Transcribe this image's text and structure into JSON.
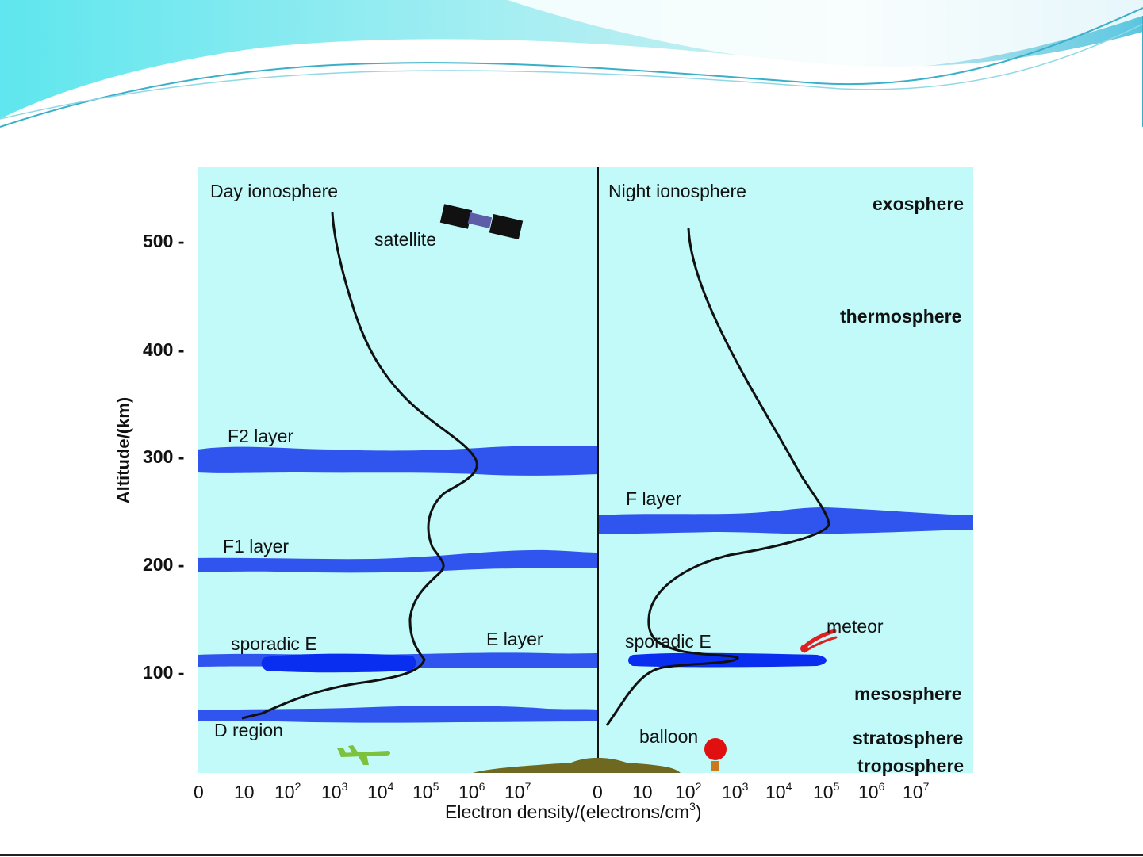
{
  "panels": {
    "day_title": "Day  ionosphere",
    "night_title": "Night  ionosphere"
  },
  "y_axis": {
    "title": "Altitude/(km)",
    "ticks": [
      "500 -",
      "400 -",
      "300 -",
      "200 -",
      "100 -"
    ]
  },
  "x_axis": {
    "title_main": "Electron density/(electrons/cm",
    "title_sup": "3",
    "title_end": ")",
    "day_ticks": [
      {
        "base": "0",
        "sup": ""
      },
      {
        "base": "10",
        "sup": ""
      },
      {
        "base": "10",
        "sup": "2"
      },
      {
        "base": "10",
        "sup": "3"
      },
      {
        "base": "10",
        "sup": "4"
      },
      {
        "base": "10",
        "sup": "5"
      },
      {
        "base": "10",
        "sup": "6"
      },
      {
        "base": "10",
        "sup": "7"
      }
    ],
    "night_ticks": [
      {
        "base": "0",
        "sup": ""
      },
      {
        "base": "10",
        "sup": ""
      },
      {
        "base": "10",
        "sup": "2"
      },
      {
        "base": "10",
        "sup": "3"
      },
      {
        "base": "10",
        "sup": "4"
      },
      {
        "base": "10",
        "sup": "5"
      },
      {
        "base": "10",
        "sup": "6"
      },
      {
        "base": "10",
        "sup": "7"
      }
    ]
  },
  "layer_labels": {
    "f2": "F2 layer",
    "f1": "F1 layer",
    "sporadic_e_day": "sporadic E",
    "e_layer": "E layer",
    "d_region": "D region",
    "f_layer": "F layer",
    "sporadic_e_night": "sporadic E"
  },
  "objects": {
    "satellite": "satellite",
    "meteor": "meteor",
    "balloon": "balloon"
  },
  "atmosphere": {
    "exosphere": "exosphere",
    "thermosphere": "thermosphere",
    "mesosphere": "mesosphere",
    "stratosphere": "stratosphere",
    "troposphere": "troposphere"
  },
  "colors": {
    "sky": "#c2fafa",
    "layer_band": "#2f55ee",
    "sporadic_blob": "#0a2ef0",
    "profile_line": "#111111",
    "ground": "#6e6820",
    "airplane": "#7cc23c",
    "balloon": "#e01010",
    "meteor": "#e02020",
    "header_teal": "#5ee0ea"
  }
}
